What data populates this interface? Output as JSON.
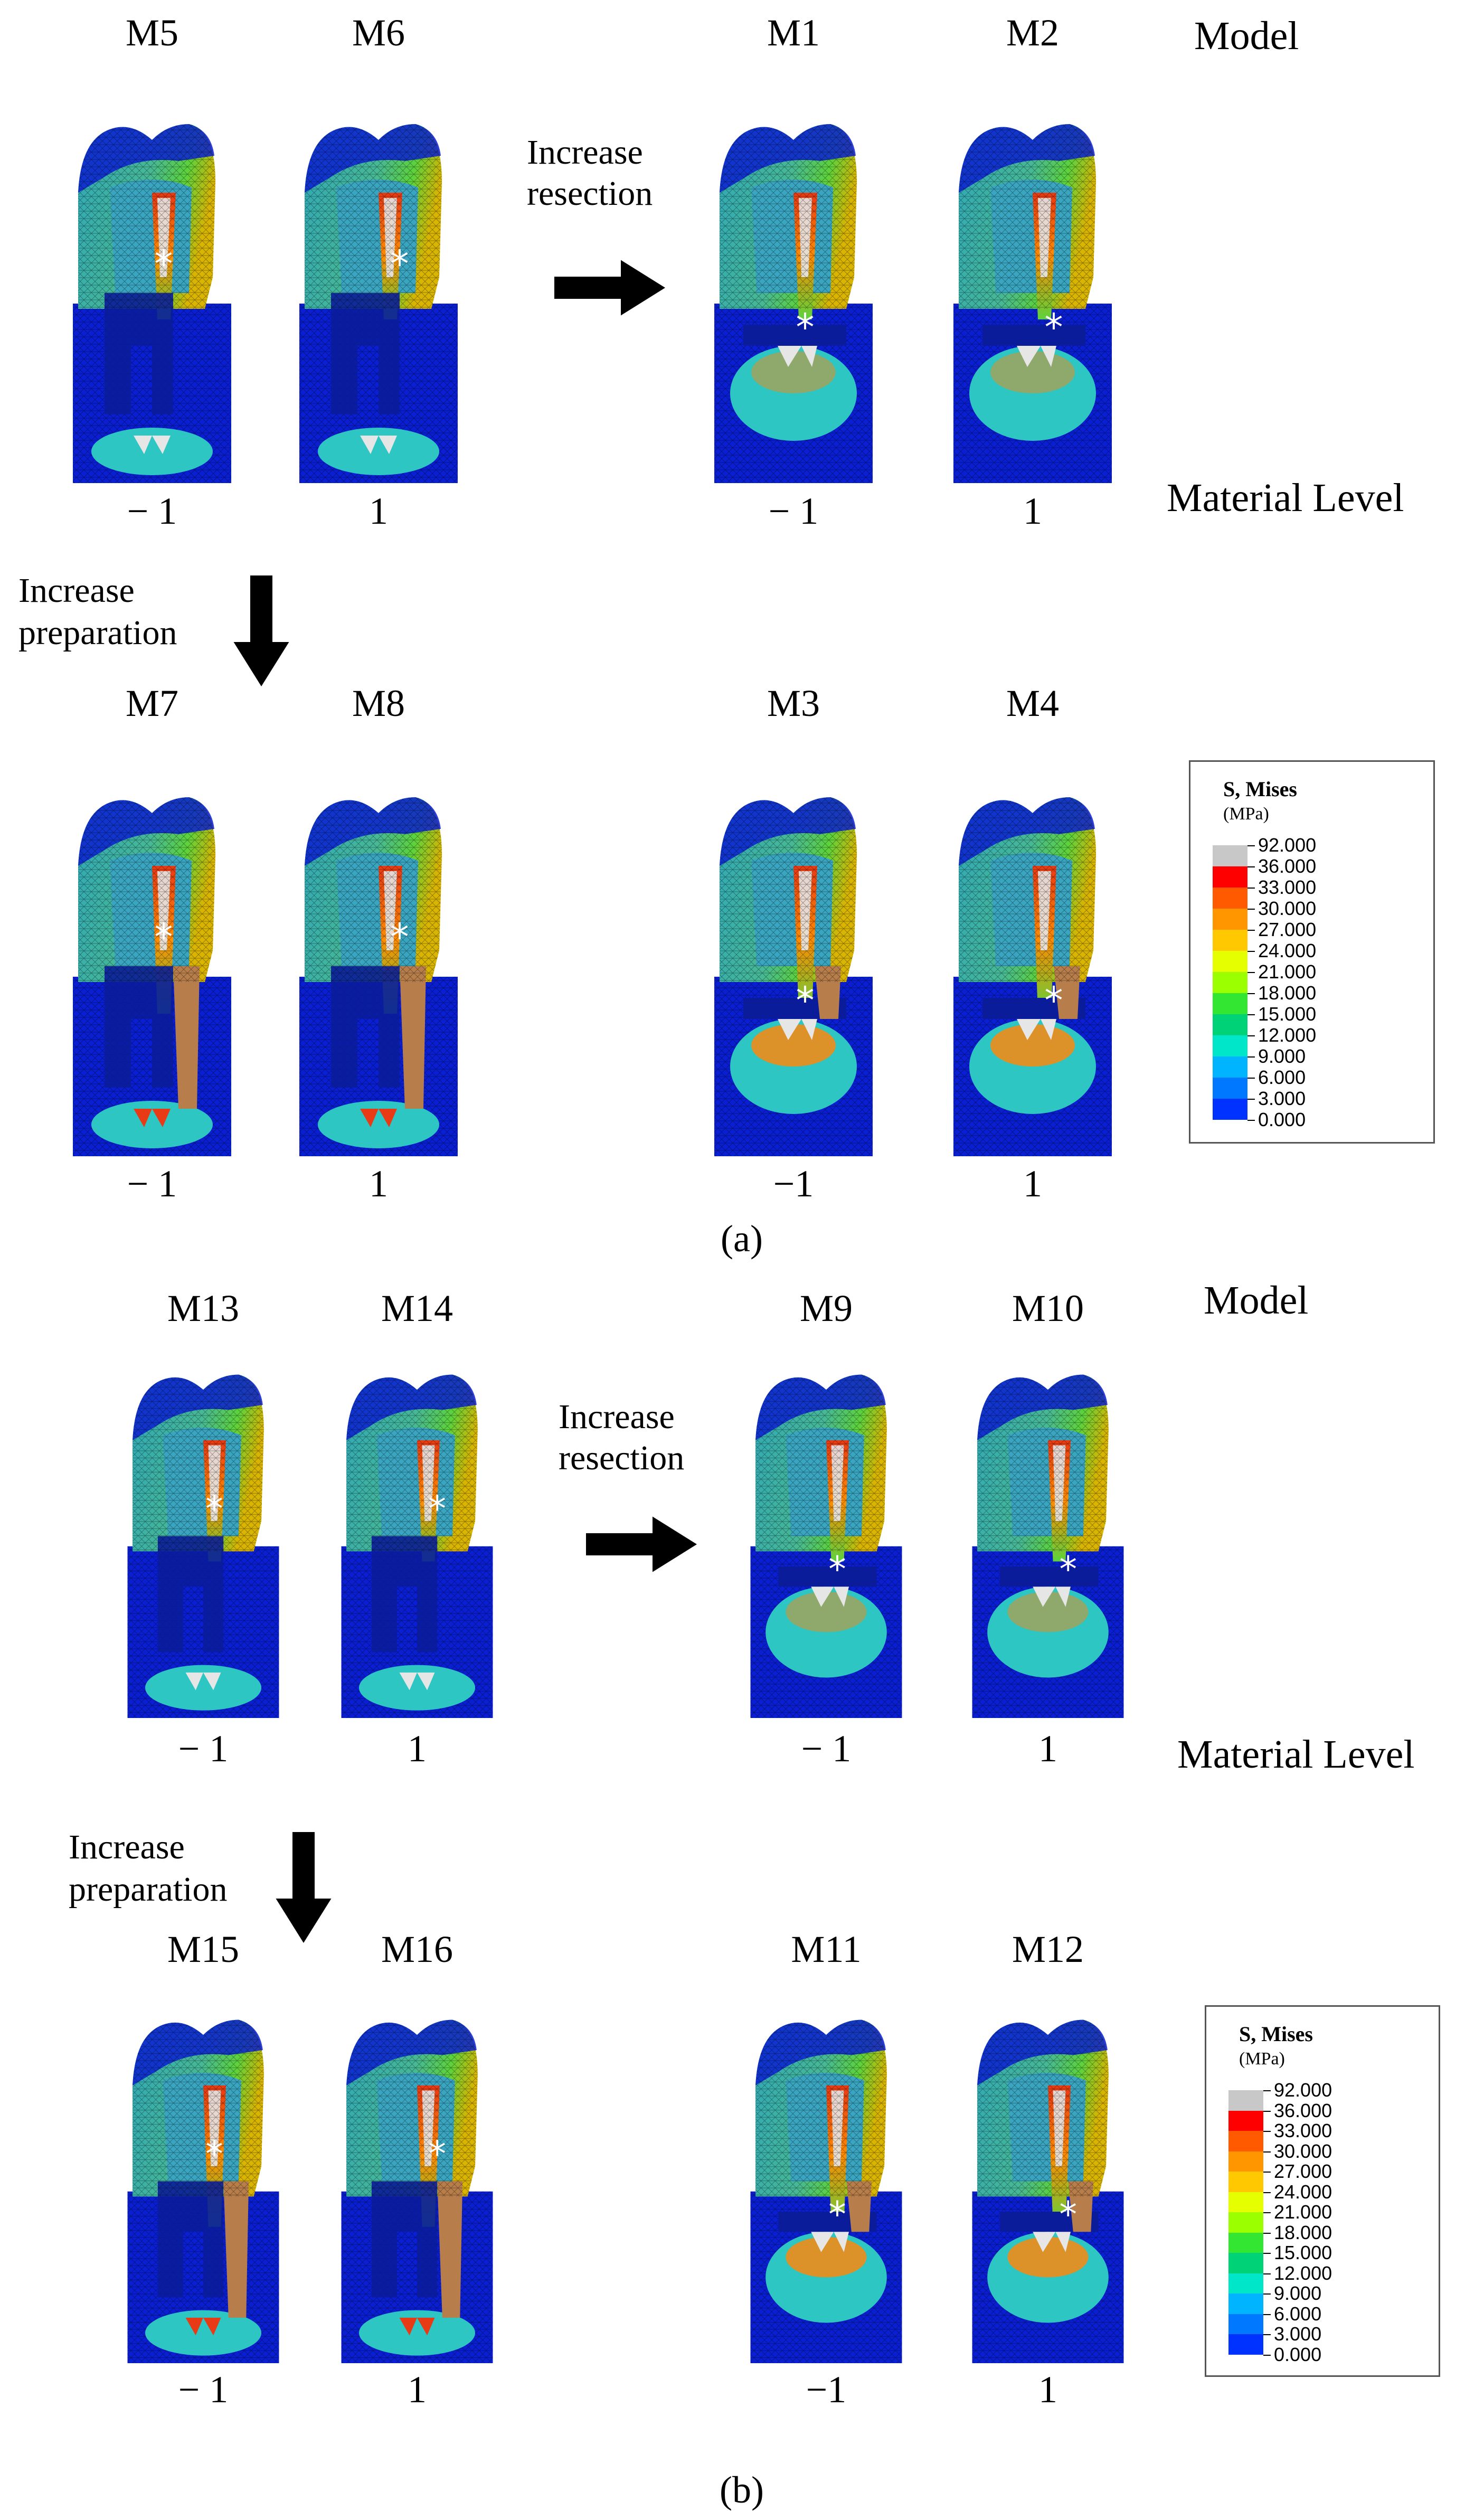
{
  "panels": [
    {
      "caption": "(a)",
      "model_label": "Model",
      "material_level_label": "Material Level",
      "resection_text": [
        "Increase",
        "resection"
      ],
      "preparation_text": [
        "Increase",
        "preparation"
      ],
      "models": [
        {
          "name": "M5",
          "level": "− 1",
          "variant": "A"
        },
        {
          "name": "M6",
          "level": "1",
          "variant": "A"
        },
        {
          "name": "M1",
          "level": "− 1",
          "variant": "R"
        },
        {
          "name": "M2",
          "level": "1",
          "variant": "R"
        },
        {
          "name": "M7",
          "level": "− 1",
          "variant": "P"
        },
        {
          "name": "M8",
          "level": "1",
          "variant": "P"
        },
        {
          "name": "M3",
          "level": "−1",
          "variant": "RP"
        },
        {
          "name": "M4",
          "level": "1",
          "variant": "RP"
        }
      ]
    },
    {
      "caption": "(b)",
      "model_label": "Model",
      "material_level_label": "Material Level",
      "resection_text": [
        "Increase",
        "resection"
      ],
      "preparation_text": [
        "Increase",
        "preparation"
      ],
      "models": [
        {
          "name": "M13",
          "level": "− 1",
          "variant": "A"
        },
        {
          "name": "M14",
          "level": "1",
          "variant": "A"
        },
        {
          "name": "M9",
          "level": "− 1",
          "variant": "R"
        },
        {
          "name": "M10",
          "level": "1",
          "variant": "R"
        },
        {
          "name": "M15",
          "level": "− 1",
          "variant": "P"
        },
        {
          "name": "M16",
          "level": "1",
          "variant": "P"
        },
        {
          "name": "M11",
          "level": "−1",
          "variant": "RP"
        },
        {
          "name": "M12",
          "level": "1",
          "variant": "RP"
        }
      ]
    }
  ],
  "legend": {
    "title": "S, Mises",
    "unit": "(MPa)",
    "values": [
      "92.000",
      "36.000",
      "33.000",
      "30.000",
      "27.000",
      "24.000",
      "21.000",
      "18.000",
      "15.000",
      "12.000",
      "9.000",
      "6.000",
      "3.000",
      "0.000"
    ],
    "colors": [
      "#c8c8c8",
      "#ff0000",
      "#ff5a00",
      "#ff9600",
      "#ffc800",
      "#e6ff00",
      "#9bff00",
      "#32e632",
      "#00d278",
      "#00e6c8",
      "#00b4ff",
      "#0078ff",
      "#0032ff"
    ]
  },
  "colors": {
    "deep_blue": "#0a1fd2",
    "navy_cavity": "#0a1c9a",
    "crown_teal": "#2fa7b8",
    "green_stress": "#5cd23c",
    "hot_stress": "#e83a14",
    "white_stress": "#e6e6e6"
  },
  "icons": [
    "arrow-right-icon",
    "arrow-down-icon",
    "asterisk-icon"
  ]
}
